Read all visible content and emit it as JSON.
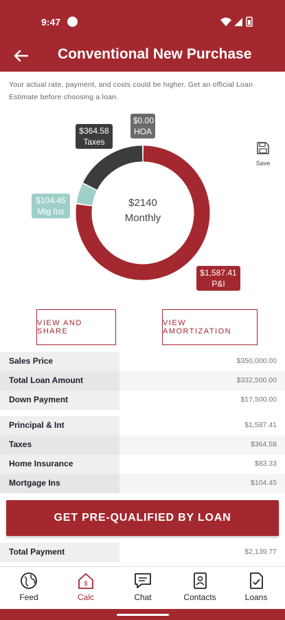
{
  "status_bar": {
    "time": "9:47"
  },
  "header": {
    "title": "Conventional New Purchase"
  },
  "disclaimer": "Your actual rate, payment, and costs could be higher. Get an official Loan Estimate before choosing a loan.",
  "chart_data": {
    "type": "pie",
    "donut": true,
    "center_amount": "$2140",
    "center_label": "Monthly",
    "slices": [
      {
        "name": "P&I",
        "label": "$1,587.41",
        "value": 1587.41,
        "color": "#a4282f"
      },
      {
        "name": "Mtg Ins",
        "label": "$104.45",
        "value": 104.45,
        "color": "#9fcfc9"
      },
      {
        "name": "Taxes",
        "label": "$364.58",
        "value": 364.58,
        "color": "#3c3c3e"
      },
      {
        "name": "HOA",
        "label": "$0.00",
        "value": 0.0,
        "color": "#6b6b6b"
      }
    ]
  },
  "save_label": "Save",
  "buttons": {
    "share": "VIEW AND SHARE",
    "amortization": "VIEW AMORTIZATION"
  },
  "loan_rows": [
    {
      "label": "Sales Price",
      "value": "$350,000.00"
    },
    {
      "label": "Total Loan Amount",
      "value": "$332,500.00"
    },
    {
      "label": "Down Payment",
      "value": "$17,500.00"
    }
  ],
  "payment_rows": [
    {
      "label": "Principal & Int",
      "value": "$1,587.41"
    },
    {
      "label": "Taxes",
      "value": "$364.58"
    },
    {
      "label": "Home Insurance",
      "value": "$83.33"
    },
    {
      "label": "Mortgage Ins",
      "value": "$104.45"
    }
  ],
  "cta_label": "GET PRE-QUALIFIED BY LOAN",
  "total": {
    "label": "Total Payment",
    "value": "$2,139.77"
  },
  "nav": [
    {
      "label": "Feed",
      "icon": "globe-icon"
    },
    {
      "label": "Calc",
      "icon": "calculator-home-icon",
      "active": true
    },
    {
      "label": "Chat",
      "icon": "chat-icon"
    },
    {
      "label": "Contacts",
      "icon": "contacts-icon"
    },
    {
      "label": "Loans",
      "icon": "document-check-icon"
    }
  ],
  "colors": {
    "brand": "#a4282f",
    "mtg_ins": "#9fcfc9",
    "taxes": "#3c3c3e",
    "hoa": "#6b6b6b"
  }
}
